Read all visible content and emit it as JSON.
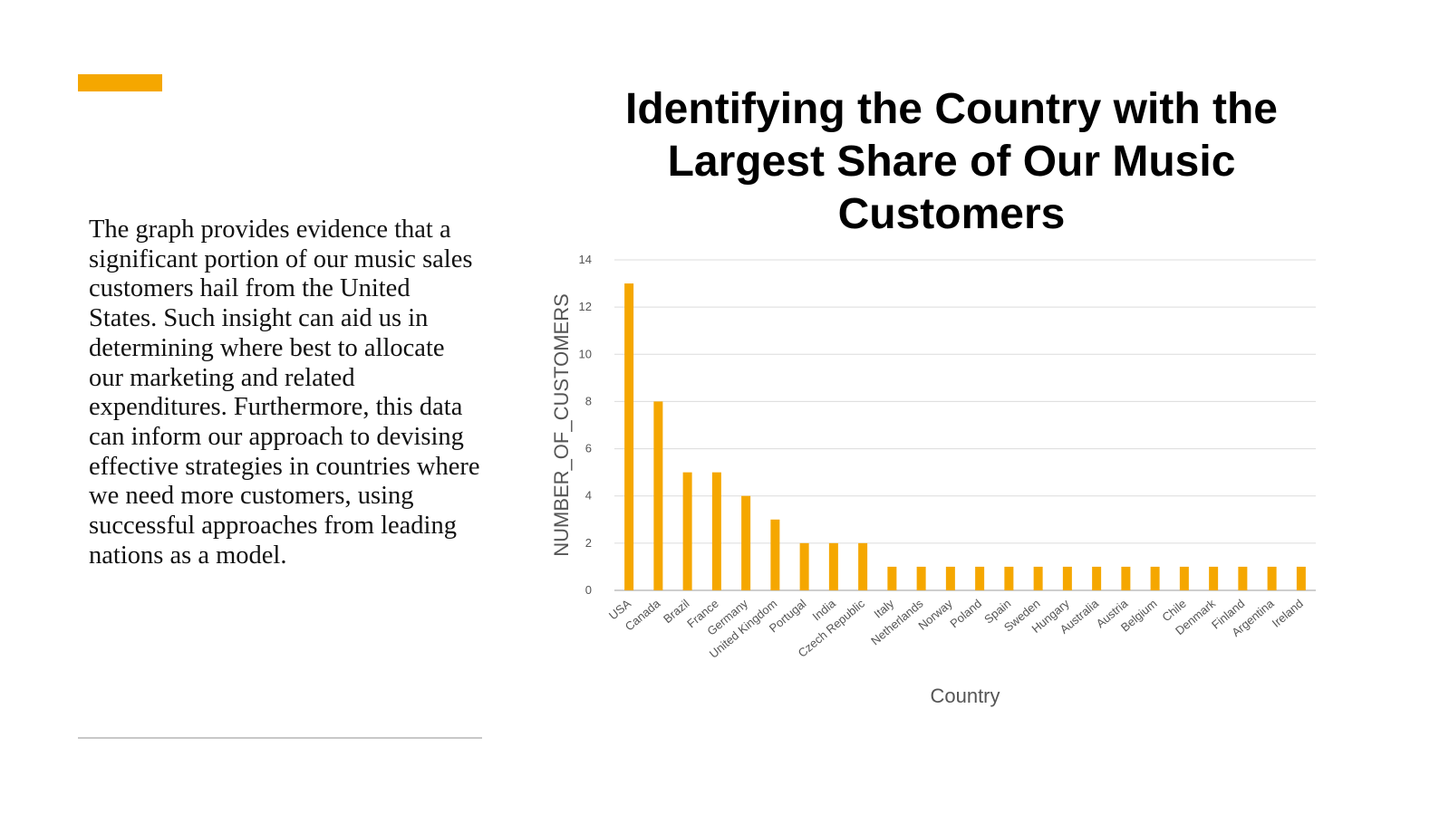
{
  "slide": {
    "accent_color": "#f5a700",
    "paragraph": "The graph provides evidence that a significant portion of our music sales customers hail from the United States. Such insight can aid us in determining where best to allocate our marketing and related expenditures. Furthermore, this data can inform our approach to devising effective strategies in countries where we need more customers, using successful approaches from leading nations as a model."
  },
  "chart_data": {
    "type": "bar",
    "title": "Identifying the Country with the Largest Share of Our Music Customers",
    "xlabel": "Country",
    "ylabel": "NUMBER_OF_CUSTOMERS",
    "ylim": [
      0,
      14
    ],
    "yticks": [
      0,
      2,
      4,
      6,
      8,
      10,
      12,
      14
    ],
    "grid": true,
    "bar_color": "#f5a700",
    "categories": [
      "USA",
      "Canada",
      "Brazil",
      "France",
      "Germany",
      "United Kingdom",
      "Portugal",
      "India",
      "Czech Republic",
      "Italy",
      "Netherlands",
      "Norway",
      "Poland",
      "Spain",
      "Sweden",
      "Hungary",
      "Australia",
      "Austria",
      "Belgium",
      "Chile",
      "Denmark",
      "Finland",
      "Argentina",
      "Ireland"
    ],
    "values": [
      13,
      8,
      5,
      5,
      4,
      3,
      2,
      2,
      2,
      1,
      1,
      1,
      1,
      1,
      1,
      1,
      1,
      1,
      1,
      1,
      1,
      1,
      1,
      1
    ]
  }
}
